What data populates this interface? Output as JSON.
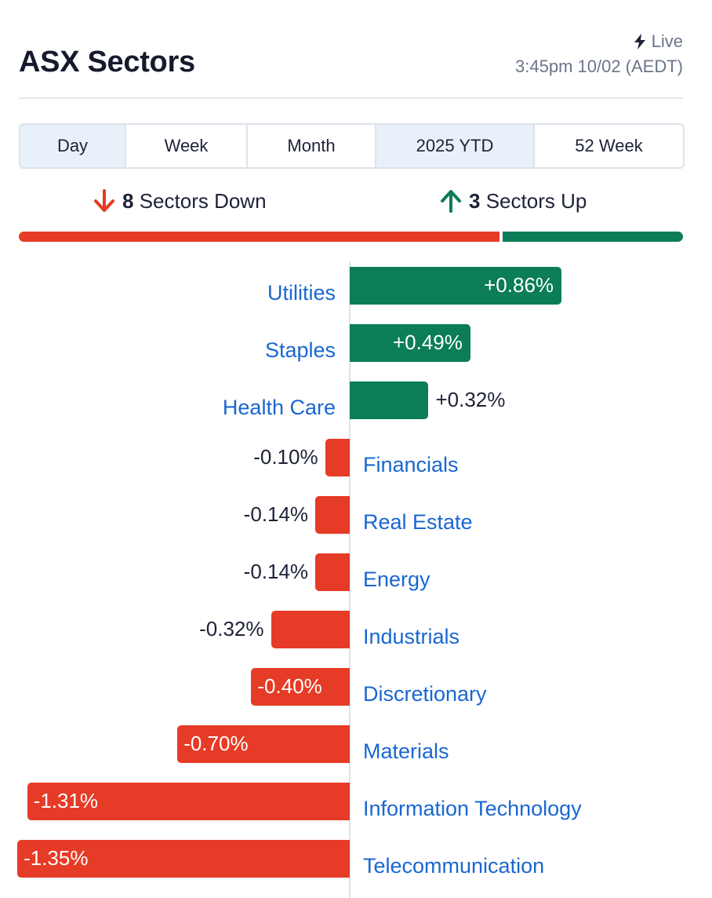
{
  "header": {
    "title": "ASX Sectors",
    "live_label": "Live",
    "timestamp": "3:45pm 10/02 (AEDT)"
  },
  "tabs": [
    {
      "label": "Day",
      "active": true
    },
    {
      "label": "Week",
      "active": false
    },
    {
      "label": "Month",
      "active": false
    },
    {
      "label": "2025 YTD",
      "active": true
    },
    {
      "label": "52 Week",
      "active": false
    }
  ],
  "summary": {
    "down_count": "8",
    "down_label": "Sectors Down",
    "up_count": "3",
    "up_label": "Sectors Up"
  },
  "colors": {
    "up": "#0b7d59",
    "down": "#e63b26",
    "link": "#1967d2"
  },
  "chart_data": {
    "type": "bar",
    "orientation": "horizontal-diverging",
    "categories": [
      "Utilities",
      "Staples",
      "Health Care",
      "Financials",
      "Real Estate",
      "Energy",
      "Industrials",
      "Discretionary",
      "Materials",
      "Information Technology",
      "Telecommunication"
    ],
    "values": [
      0.86,
      0.49,
      0.32,
      -0.1,
      -0.14,
      -0.14,
      -0.32,
      -0.4,
      -0.7,
      -1.31,
      -1.35
    ],
    "value_labels": [
      "+0.86%",
      "+0.49%",
      "+0.32%",
      "-0.10%",
      "-0.14%",
      "-0.14%",
      "-0.32%",
      "-0.40%",
      "-0.70%",
      "-1.31%",
      "-1.35%"
    ],
    "title": "",
    "xlabel": "",
    "ylabel": ""
  }
}
